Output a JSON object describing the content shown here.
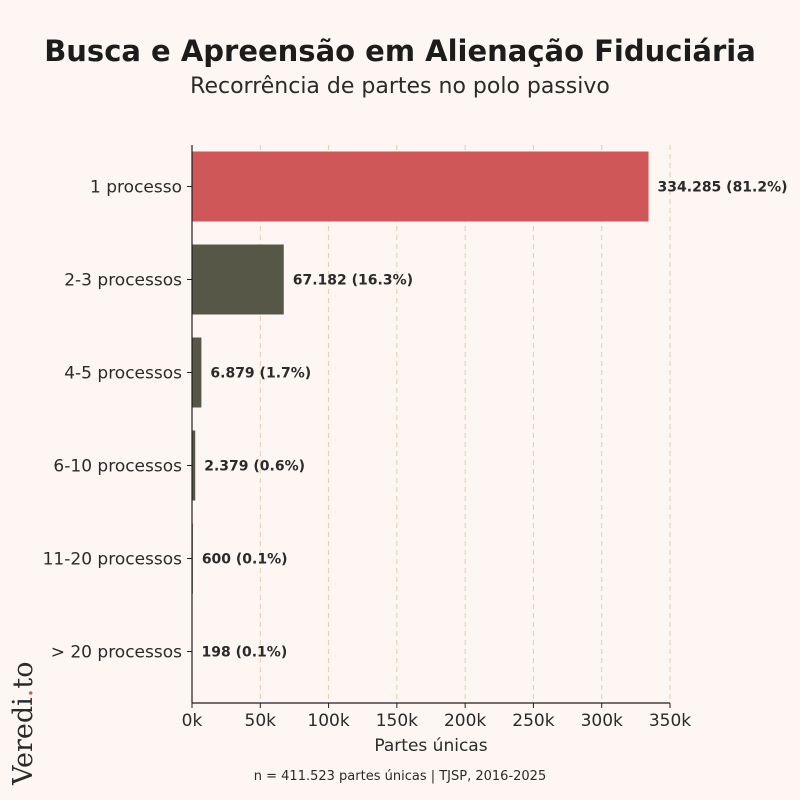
{
  "chart_data": {
    "type": "bar",
    "orientation": "horizontal",
    "title": "Busca e Apreensão em Alienação Fiduciária",
    "subtitle": "Recorrência de partes no polo passivo",
    "xlabel": "Partes únicas",
    "ylabel": "",
    "categories": [
      "1 processo",
      "2-3 processos",
      "4-5 processos",
      "6-10 processos",
      "11-20 processos",
      "> 20 processos"
    ],
    "values": [
      334285,
      67182,
      6879,
      2379,
      600,
      198
    ],
    "data_labels": [
      "334.285 (81.2%)",
      "67.182 (16.3%)",
      "6.879 (1.7%)",
      "2.379 (0.6%)",
      "600 (0.1%)",
      "198 (0.1%)"
    ],
    "xlim": [
      0,
      350000
    ],
    "xticks": [
      0,
      50000,
      100000,
      150000,
      200000,
      250000,
      300000,
      350000
    ],
    "xtick_labels": [
      "0k",
      "50k",
      "100k",
      "150k",
      "200k",
      "250k",
      "300k",
      "350k"
    ],
    "grid": "vertical dashed",
    "colors": {
      "highlight": "#d05757",
      "default": "#565747",
      "grid": "#f0c9a8",
      "background": "#fdf6f2"
    },
    "note": "n = 411.523 partes únicas | TJSP, 2016-2025"
  },
  "logo": {
    "text_main": "Veredi",
    "text_dot": ".",
    "text_tail": "to"
  }
}
